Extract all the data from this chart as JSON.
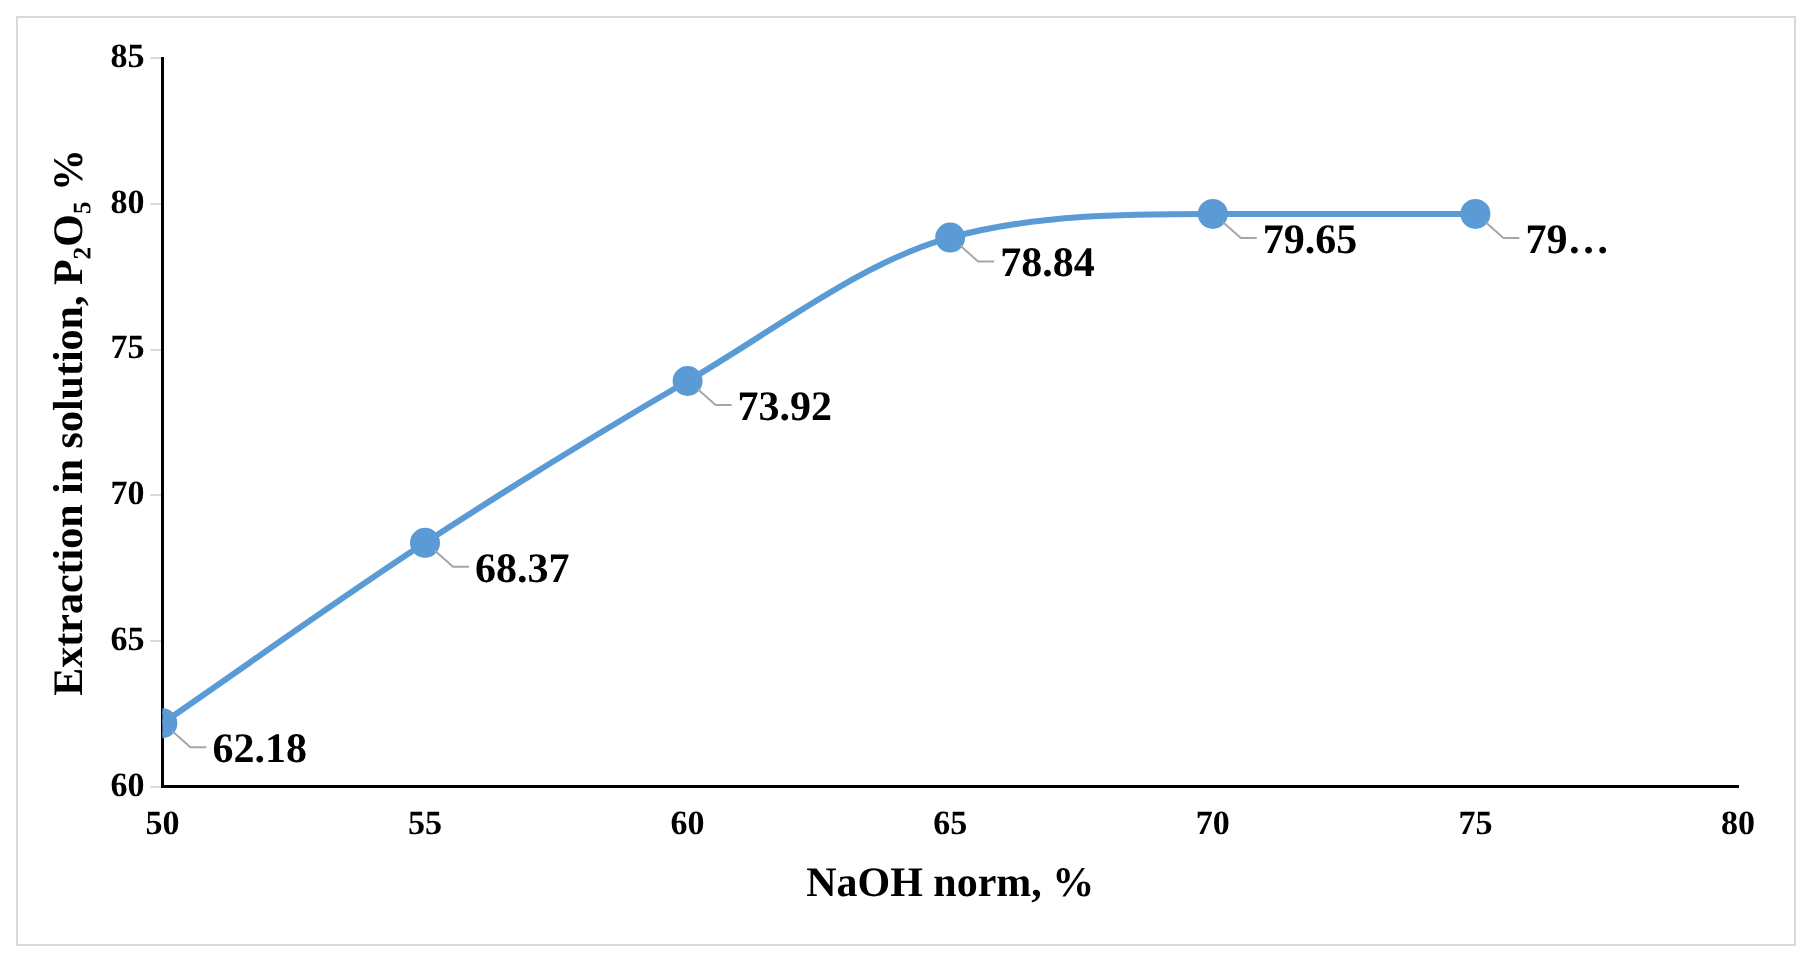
{
  "chart_data": {
    "type": "line",
    "xlabel": "NaOH norm, %",
    "ylabel": "Extraction in solution, P₂O₅ %",
    "x": [
      50,
      55,
      60,
      65,
      70,
      75
    ],
    "series": [
      {
        "color": "#5b9bd5",
        "values": [
          62.18,
          68.37,
          73.92,
          78.84,
          79.65,
          79.65
        ],
        "value_labels": [
          "62.18",
          "68.37",
          "73.92",
          "78.84",
          "79.65",
          "79…"
        ]
      }
    ],
    "xlim": [
      50,
      80
    ],
    "xticks": [
      50,
      55,
      60,
      65,
      70,
      75,
      80
    ],
    "ylim": [
      60,
      85
    ],
    "yticks": [
      60,
      65,
      70,
      75,
      80,
      85
    ],
    "grid": false,
    "legend": false,
    "marker": "circle",
    "line_style": "solid"
  }
}
